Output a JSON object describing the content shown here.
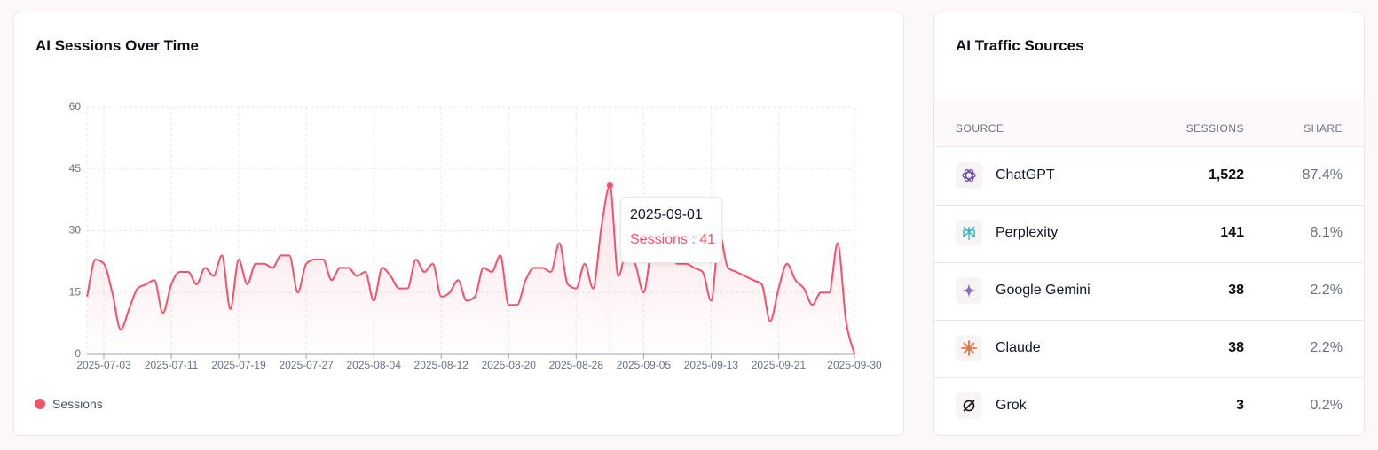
{
  "chart_data": {
    "type": "line",
    "title": "AI Sessions Over Time",
    "x": [
      "2025-07-01",
      "2025-07-02",
      "2025-07-03",
      "2025-07-04",
      "2025-07-05",
      "2025-07-06",
      "2025-07-07",
      "2025-07-08",
      "2025-07-09",
      "2025-07-10",
      "2025-07-11",
      "2025-07-12",
      "2025-07-13",
      "2025-07-14",
      "2025-07-15",
      "2025-07-16",
      "2025-07-17",
      "2025-07-18",
      "2025-07-19",
      "2025-07-20",
      "2025-07-21",
      "2025-07-22",
      "2025-07-23",
      "2025-07-24",
      "2025-07-25",
      "2025-07-26",
      "2025-07-27",
      "2025-07-28",
      "2025-07-29",
      "2025-07-30",
      "2025-07-31",
      "2025-08-01",
      "2025-08-02",
      "2025-08-03",
      "2025-08-04",
      "2025-08-05",
      "2025-08-06",
      "2025-08-07",
      "2025-08-08",
      "2025-08-09",
      "2025-08-10",
      "2025-08-11",
      "2025-08-12",
      "2025-08-13",
      "2025-08-14",
      "2025-08-15",
      "2025-08-16",
      "2025-08-17",
      "2025-08-18",
      "2025-08-19",
      "2025-08-20",
      "2025-08-21",
      "2025-08-22",
      "2025-08-23",
      "2025-08-24",
      "2025-08-25",
      "2025-08-26",
      "2025-08-27",
      "2025-08-28",
      "2025-08-29",
      "2025-08-30",
      "2025-08-31",
      "2025-09-01",
      "2025-09-02",
      "2025-09-03",
      "2025-09-04",
      "2025-09-05",
      "2025-09-06",
      "2025-09-07",
      "2025-09-08",
      "2025-09-09",
      "2025-09-10",
      "2025-09-11",
      "2025-09-12",
      "2025-09-13",
      "2025-09-14",
      "2025-09-15",
      "2025-09-16",
      "2025-09-17",
      "2025-09-18",
      "2025-09-19",
      "2025-09-20",
      "2025-09-21",
      "2025-09-22",
      "2025-09-23",
      "2025-09-24",
      "2025-09-25",
      "2025-09-26",
      "2025-09-27",
      "2025-09-28",
      "2025-09-29",
      "2025-09-30"
    ],
    "series": [
      {
        "name": "Sessions",
        "color": "#f4516c",
        "values": [
          14,
          23,
          22,
          15,
          6,
          11,
          16,
          17,
          18,
          10,
          17,
          20,
          20,
          17,
          21,
          19,
          24,
          11,
          23,
          17,
          22,
          22,
          21,
          24,
          24,
          15,
          22,
          23,
          23,
          18,
          21,
          21,
          19,
          20,
          13,
          21,
          19,
          16,
          16,
          23,
          20,
          22,
          14,
          15,
          18,
          13,
          14,
          21,
          20,
          24,
          12,
          12,
          18,
          21,
          21,
          20,
          27,
          17,
          16,
          22,
          16,
          31,
          41,
          19,
          25,
          22,
          15,
          25,
          24,
          24,
          22,
          22,
          21,
          20,
          13,
          29,
          21,
          20,
          19,
          18,
          17,
          8,
          16,
          22,
          18,
          16,
          12,
          15,
          15,
          27,
          8,
          0
        ]
      }
    ],
    "ylim": [
      0,
      60
    ],
    "yticks": [
      0,
      15,
      30,
      45,
      60
    ],
    "grid": true,
    "legend": "bottom-left"
  },
  "sources": {
    "title": "AI Traffic Sources",
    "columns": [
      "SOURCE",
      "SESSIONS",
      "SHARE"
    ],
    "rows": [
      [
        "ChatGPT",
        "1,522",
        "87.4%"
      ],
      [
        "Perplexity",
        "141",
        "8.1%"
      ],
      [
        "Google Gemini",
        "38",
        "2.2%"
      ],
      [
        "Claude",
        "38",
        "2.2%"
      ],
      [
        "Grok",
        "3",
        "0.2%"
      ]
    ]
  }
}
